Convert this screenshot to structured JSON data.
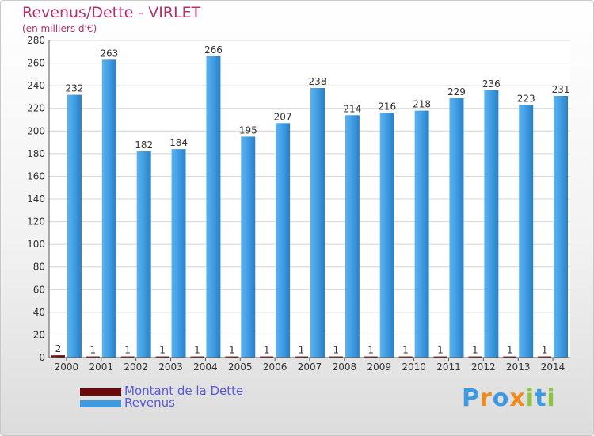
{
  "chart_data": {
    "type": "bar",
    "title": "Revenus/Dette - VIRLET",
    "subtitle": "(en milliers d'€)",
    "categories": [
      "2000",
      "2001",
      "2002",
      "2003",
      "2004",
      "2005",
      "2006",
      "2007",
      "2008",
      "2009",
      "2010",
      "2011",
      "2012",
      "2013",
      "2014"
    ],
    "series": [
      {
        "name": "Montant de la Dette",
        "values": [
          2,
          1,
          1,
          1,
          1,
          1,
          1,
          1,
          1,
          1,
          1,
          1,
          1,
          1,
          1
        ],
        "color": "#6b0a0a"
      },
      {
        "name": "Revenus",
        "values": [
          232,
          263,
          182,
          184,
          266,
          195,
          207,
          238,
          214,
          216,
          218,
          229,
          236,
          223,
          231
        ],
        "color": "#3d9ae0"
      }
    ],
    "ylim": [
      0,
      280
    ],
    "yticks": [
      0,
      20,
      40,
      60,
      80,
      100,
      120,
      140,
      160,
      180,
      200,
      220,
      240,
      260,
      280
    ],
    "grid": true,
    "legend_position": "bottom-left"
  },
  "logo": {
    "text": "Proxiti",
    "colors": [
      "#3d9ae0",
      "#f08a1c",
      "#3d9ae0",
      "#f08a1c",
      "#8cc63f",
      "#3d9ae0",
      "#8cc63f"
    ]
  }
}
